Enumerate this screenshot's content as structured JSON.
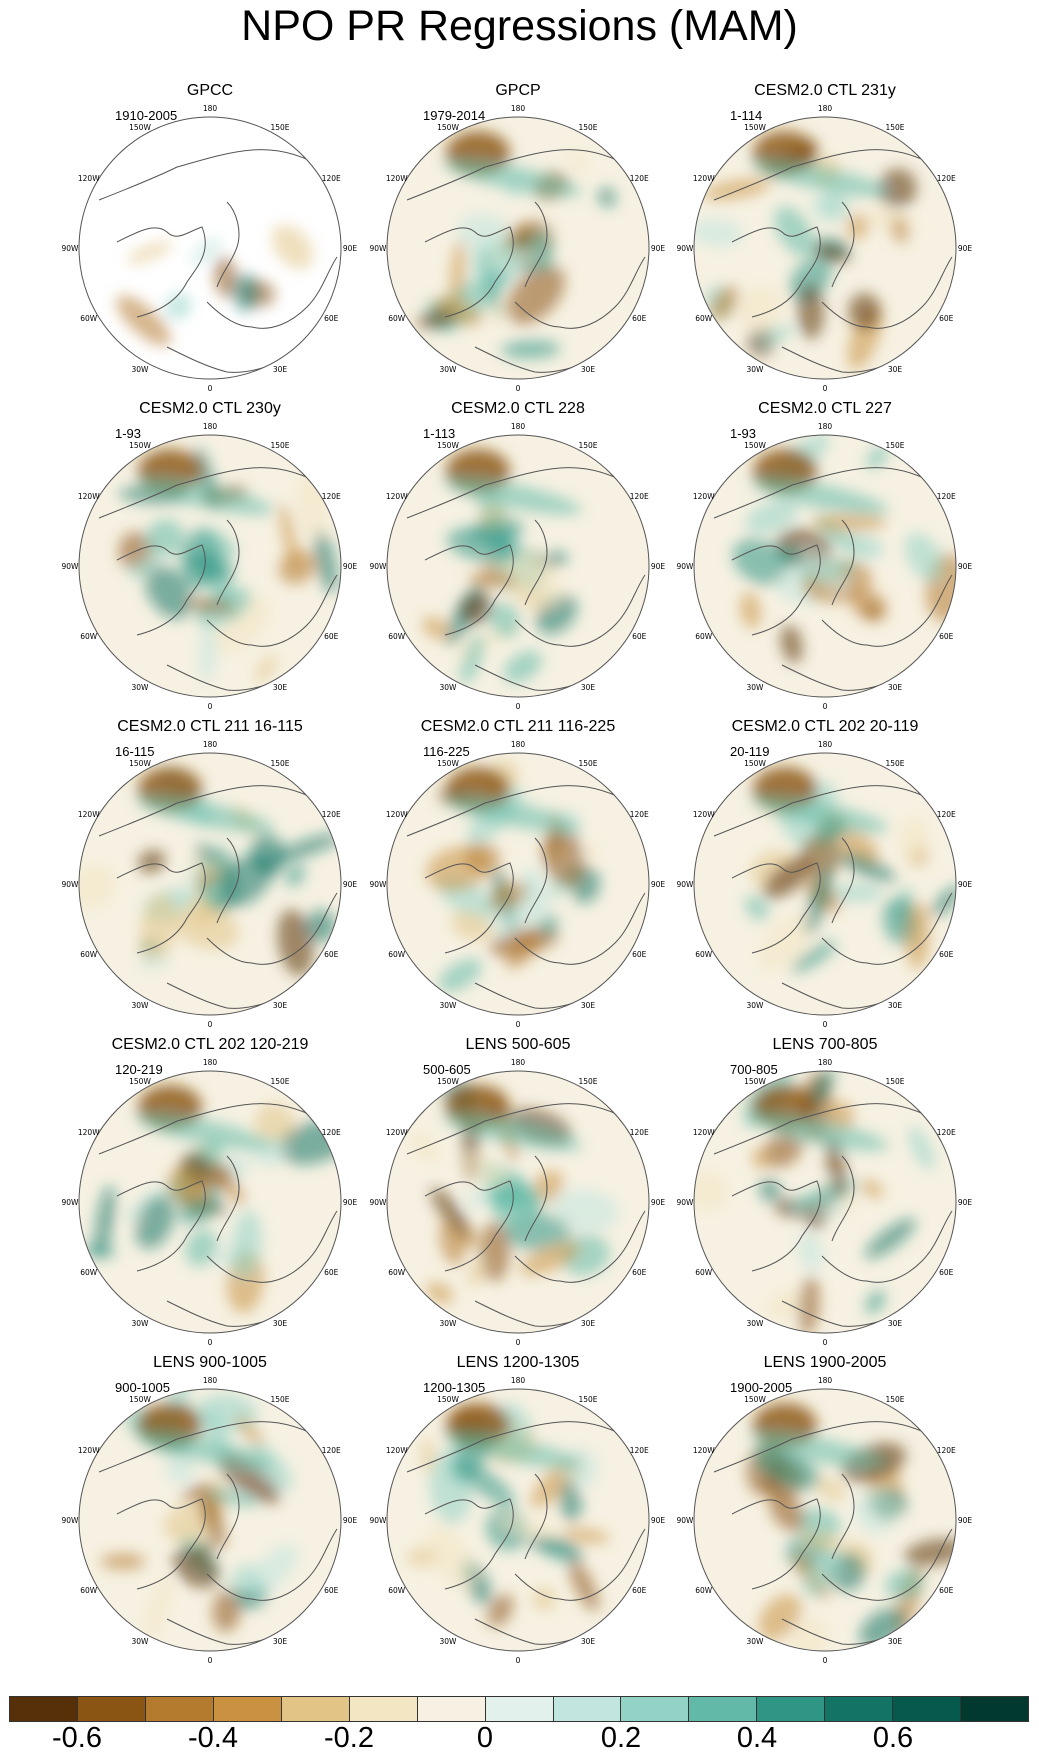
{
  "title": "NPO PR Regressions (MAM)",
  "longitude_labels": [
    "180",
    "150E",
    "120E",
    "90E",
    "60E",
    "30E",
    "0",
    "30W",
    "60W",
    "90W",
    "120W",
    "150W"
  ],
  "panels": [
    {
      "title": "GPCC",
      "range": "1910-2005"
    },
    {
      "title": "GPCP",
      "range": "1979-2014"
    },
    {
      "title": "CESM2.0 CTL 231y",
      "range": "1-114"
    },
    {
      "title": "CESM2.0 CTL 230y",
      "range": "1-93"
    },
    {
      "title": "CESM2.0 CTL 228",
      "range": "1-113"
    },
    {
      "title": "CESM2.0 CTL 227",
      "range": "1-93"
    },
    {
      "title": "CESM2.0 CTL 211 16-115",
      "range": "16-115"
    },
    {
      "title": "CESM2.0 CTL 211 116-225",
      "range": "116-225"
    },
    {
      "title": "CESM2.0 CTL 202 20-119",
      "range": "20-119"
    },
    {
      "title": "CESM2.0 CTL 202 120-219",
      "range": "120-219"
    },
    {
      "title": "LENS 500-605",
      "range": "500-605"
    },
    {
      "title": "LENS 700-805",
      "range": "700-805"
    },
    {
      "title": "LENS 900-1005",
      "range": "900-1005"
    },
    {
      "title": "LENS 1200-1305",
      "range": "1200-1305"
    },
    {
      "title": "LENS 1900-2005",
      "range": "1900-2005"
    }
  ],
  "colorbar": {
    "colors": [
      "#553008",
      "#8a5412",
      "#b47a2e",
      "#c99140",
      "#e2c586",
      "#f2e6c3",
      "#f6f1e2",
      "#e3f1ed",
      "#c2e6df",
      "#93d3c6",
      "#62b9a8",
      "#2f9585",
      "#137466",
      "#055a4d",
      "#02392f"
    ],
    "labels": [
      "-0.6",
      "-0.4",
      "-0.2",
      "0",
      "0.2",
      "0.4",
      "0.6"
    ]
  }
}
